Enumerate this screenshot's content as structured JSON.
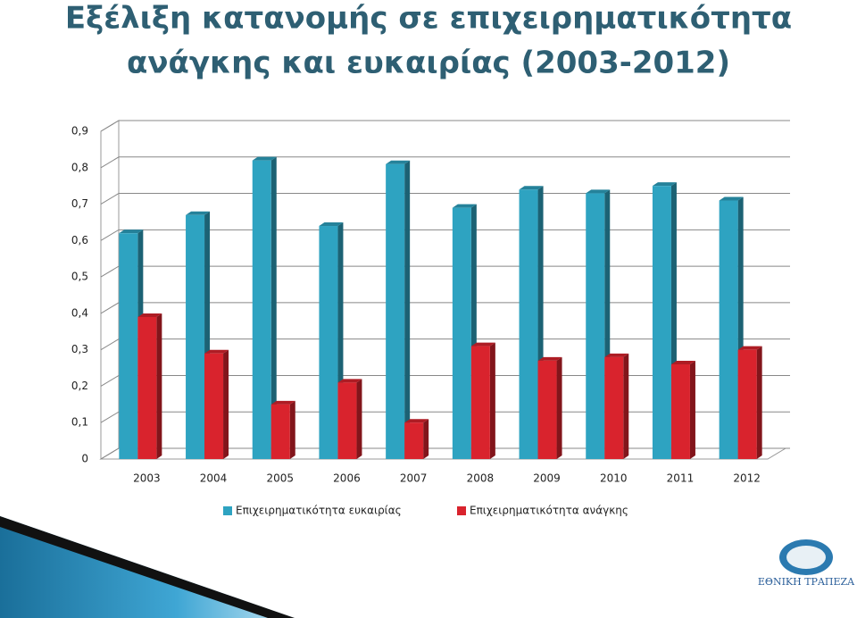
{
  "chart_data": {
    "type": "bar3d",
    "title": "Εξέλιξη κατανομής σε επιχειρηματικότητα",
    "subtitle": "ανάγκης και ευκαιρίας (2003-2012)",
    "categories": [
      "2003",
      "2004",
      "2005",
      "2006",
      "2007",
      "2008",
      "2009",
      "2010",
      "2011",
      "2012"
    ],
    "series": [
      {
        "name": "Επιχειρηματικότητα ευκαιρίας",
        "color": "#2ea3c1",
        "values": [
          0.62,
          0.67,
          0.82,
          0.64,
          0.81,
          0.69,
          0.74,
          0.73,
          0.75,
          0.71
        ]
      },
      {
        "name": "Επιχειρηματικότητα ανάγκης",
        "color": "#d9232d",
        "values": [
          0.39,
          0.29,
          0.15,
          0.21,
          0.1,
          0.31,
          0.27,
          0.28,
          0.26,
          0.3
        ]
      }
    ],
    "ylim": [
      0,
      0.9
    ],
    "yticks": [
      0,
      {
        "value": 0.1,
        "label": "0,1"
      },
      {
        "value": 0.2,
        "label": "0,2"
      },
      {
        "value": 0.3,
        "label": "0,3"
      },
      {
        "value": 0.4,
        "label": "0,4"
      },
      {
        "value": 0.5,
        "label": "0,5"
      },
      {
        "value": 0.6,
        "label": "0,6"
      },
      {
        "value": 0.7,
        "label": "0,7"
      },
      {
        "value": 0.8,
        "label": "0,8"
      },
      {
        "value": 0.9,
        "label": "0,9"
      }
    ],
    "grid": true,
    "legend": "bottom"
  },
  "logo": {
    "text": "ΕΘΝΙΚΗ ΤΡΑΠΕΖΑ"
  }
}
